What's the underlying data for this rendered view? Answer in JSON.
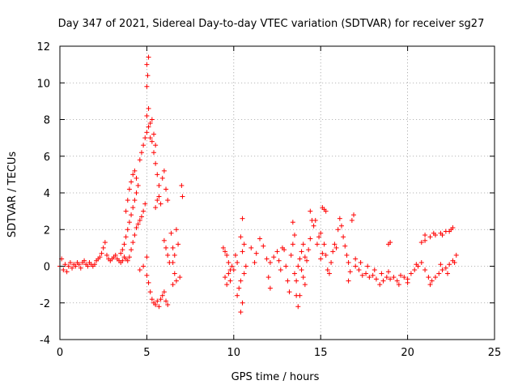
{
  "chart_data": {
    "type": "scatter",
    "title": "Day 347 of 2021, Sidereal Day-to-day VTEC variation (SDTVAR) for receiver sg27",
    "xlabel": "GPS time / hours",
    "ylabel": "SDTVAR / TECUs",
    "xlim": [
      0,
      25
    ],
    "ylim": [
      -4,
      12
    ],
    "xticks": [
      0,
      5,
      10,
      15,
      20,
      25
    ],
    "yticks": [
      -4,
      -2,
      0,
      2,
      4,
      6,
      8,
      10,
      12
    ],
    "grid": true,
    "marker": "+",
    "color": "#ff0000",
    "series": [
      {
        "name": "sg27",
        "points": [
          [
            0.0,
            0.0
          ],
          [
            0.1,
            0.4
          ],
          [
            0.2,
            -0.2
          ],
          [
            0.3,
            0.1
          ],
          [
            0.4,
            -0.3
          ],
          [
            0.5,
            0.0
          ],
          [
            0.6,
            0.2
          ],
          [
            0.7,
            -0.1
          ],
          [
            0.8,
            0.1
          ],
          [
            0.9,
            0.0
          ],
          [
            1.0,
            0.2
          ],
          [
            1.1,
            0.1
          ],
          [
            1.2,
            -0.1
          ],
          [
            1.3,
            0.2
          ],
          [
            1.4,
            0.3
          ],
          [
            1.5,
            0.1
          ],
          [
            1.6,
            0.0
          ],
          [
            1.7,
            0.2
          ],
          [
            1.8,
            0.1
          ],
          [
            1.9,
            0.0
          ],
          [
            2.0,
            0.1
          ],
          [
            2.1,
            0.3
          ],
          [
            2.2,
            0.4
          ],
          [
            2.3,
            0.5
          ],
          [
            2.4,
            0.7
          ],
          [
            2.5,
            1.0
          ],
          [
            2.6,
            1.3
          ],
          [
            2.7,
            0.6
          ],
          [
            2.8,
            0.4
          ],
          [
            2.9,
            0.3
          ],
          [
            3.0,
            0.4
          ],
          [
            3.1,
            0.5
          ],
          [
            3.2,
            0.6
          ],
          [
            3.3,
            0.4
          ],
          [
            3.4,
            0.3
          ],
          [
            3.5,
            0.2
          ],
          [
            3.6,
            0.3
          ],
          [
            3.7,
            0.5
          ],
          [
            3.8,
            0.4
          ],
          [
            3.9,
            0.3
          ],
          [
            3.5,
            0.7
          ],
          [
            3.6,
            0.9
          ],
          [
            3.7,
            1.2
          ],
          [
            3.8,
            1.6
          ],
          [
            3.9,
            2.0
          ],
          [
            4.0,
            2.4
          ],
          [
            4.1,
            2.8
          ],
          [
            4.2,
            3.2
          ],
          [
            4.3,
            3.6
          ],
          [
            4.4,
            4.0
          ],
          [
            3.8,
            3.0
          ],
          [
            3.9,
            3.6
          ],
          [
            4.0,
            4.2
          ],
          [
            4.1,
            4.6
          ],
          [
            4.2,
            5.0
          ],
          [
            4.3,
            5.2
          ],
          [
            4.4,
            4.8
          ],
          [
            4.5,
            4.4
          ],
          [
            4.6,
            5.8
          ],
          [
            4.7,
            6.2
          ],
          [
            4.0,
            0.5
          ],
          [
            4.1,
            0.9
          ],
          [
            4.2,
            1.3
          ],
          [
            4.3,
            1.7
          ],
          [
            4.4,
            2.1
          ],
          [
            4.5,
            2.3
          ],
          [
            4.6,
            2.5
          ],
          [
            4.7,
            2.7
          ],
          [
            4.8,
            3.0
          ],
          [
            4.9,
            3.4
          ],
          [
            4.8,
            6.6
          ],
          [
            4.9,
            7.0
          ],
          [
            5.0,
            7.3
          ],
          [
            5.1,
            7.6
          ],
          [
            5.2,
            7.0
          ],
          [
            5.3,
            6.8
          ],
          [
            5.4,
            7.2
          ],
          [
            5.5,
            6.6
          ],
          [
            5.0,
            8.2
          ],
          [
            5.1,
            8.6
          ],
          [
            5.0,
            9.8
          ],
          [
            5.05,
            10.4
          ],
          [
            5.0,
            11.0
          ],
          [
            5.1,
            11.4
          ],
          [
            5.2,
            7.8
          ],
          [
            5.3,
            8.0
          ],
          [
            5.4,
            6.2
          ],
          [
            5.5,
            5.6
          ],
          [
            5.6,
            5.0
          ],
          [
            5.7,
            4.4
          ],
          [
            5.0,
            0.5
          ],
          [
            4.6,
            -0.2
          ],
          [
            4.8,
            0.0
          ],
          [
            5.0,
            -0.5
          ],
          [
            5.1,
            -0.9
          ],
          [
            5.2,
            -1.4
          ],
          [
            5.3,
            -1.8
          ],
          [
            5.4,
            -2.0
          ],
          [
            5.5,
            -2.1
          ],
          [
            5.6,
            -1.9
          ],
          [
            5.7,
            -2.2
          ],
          [
            5.8,
            -1.8
          ],
          [
            5.9,
            -1.6
          ],
          [
            6.0,
            -1.4
          ],
          [
            6.1,
            -1.9
          ],
          [
            6.2,
            -2.1
          ],
          [
            5.5,
            3.2
          ],
          [
            5.6,
            3.6
          ],
          [
            5.7,
            3.8
          ],
          [
            5.8,
            3.4
          ],
          [
            5.9,
            4.8
          ],
          [
            6.0,
            5.2
          ],
          [
            6.1,
            4.2
          ],
          [
            6.2,
            3.6
          ],
          [
            6.0,
            1.4
          ],
          [
            6.1,
            1.0
          ],
          [
            6.2,
            0.6
          ],
          [
            6.3,
            0.2
          ],
          [
            6.4,
            1.8
          ],
          [
            6.5,
            1.0
          ],
          [
            6.5,
            0.2
          ],
          [
            6.6,
            -0.4
          ],
          [
            6.7,
            -0.8
          ],
          [
            6.5,
            -1.0
          ],
          [
            6.6,
            0.6
          ],
          [
            6.8,
            1.2
          ],
          [
            7.0,
            4.4
          ],
          [
            7.05,
            3.8
          ],
          [
            6.9,
            -0.6
          ],
          [
            6.7,
            2.0
          ],
          [
            9.4,
            1.0
          ],
          [
            9.5,
            0.8
          ],
          [
            9.6,
            0.6
          ],
          [
            9.7,
            0.2
          ],
          [
            9.8,
            -0.2
          ],
          [
            9.9,
            0.0
          ],
          [
            9.5,
            -0.6
          ],
          [
            9.6,
            -1.0
          ],
          [
            9.7,
            -0.4
          ],
          [
            9.8,
            -0.8
          ],
          [
            10.0,
            -0.2
          ],
          [
            10.1,
            0.6
          ],
          [
            10.2,
            0.2
          ],
          [
            10.3,
            -1.2
          ],
          [
            10.4,
            -0.8
          ],
          [
            10.5,
            -2.0
          ],
          [
            10.4,
            -2.5
          ],
          [
            10.5,
            2.6
          ],
          [
            10.6,
            1.2
          ],
          [
            10.4,
            1.6
          ],
          [
            10.5,
            0.8
          ],
          [
            10.6,
            -0.4
          ],
          [
            10.2,
            -1.6
          ],
          [
            10.7,
            0.0
          ],
          [
            11.0,
            1.0
          ],
          [
            11.2,
            0.2
          ],
          [
            11.3,
            0.7
          ],
          [
            11.5,
            1.5
          ],
          [
            11.7,
            1.1
          ],
          [
            11.9,
            0.4
          ],
          [
            12.0,
            -0.6
          ],
          [
            12.1,
            -1.2
          ],
          [
            12.1,
            0.2
          ],
          [
            12.3,
            0.5
          ],
          [
            12.5,
            0.8
          ],
          [
            12.6,
            0.3
          ],
          [
            12.7,
            -0.2
          ],
          [
            12.8,
            1.0
          ],
          [
            12.9,
            0.9
          ],
          [
            13.0,
            0.0
          ],
          [
            13.1,
            -0.8
          ],
          [
            13.2,
            -1.4
          ],
          [
            13.3,
            0.6
          ],
          [
            13.4,
            1.2
          ],
          [
            13.5,
            1.7
          ],
          [
            13.4,
            2.4
          ],
          [
            13.5,
            -0.4
          ],
          [
            13.6,
            -0.8
          ],
          [
            13.7,
            0.0
          ],
          [
            13.8,
            0.4
          ],
          [
            13.9,
            -0.2
          ],
          [
            14.0,
            -0.6
          ],
          [
            14.1,
            -1.0
          ],
          [
            13.6,
            -1.6
          ],
          [
            13.7,
            -2.2
          ],
          [
            13.8,
            -1.6
          ],
          [
            13.9,
            0.8
          ],
          [
            14.0,
            1.2
          ],
          [
            14.1,
            0.5
          ],
          [
            14.2,
            0.3
          ],
          [
            14.3,
            0.9
          ],
          [
            14.4,
            1.5
          ],
          [
            14.5,
            2.5
          ],
          [
            14.4,
            3.0
          ],
          [
            14.6,
            2.2
          ],
          [
            14.7,
            2.5
          ],
          [
            14.8,
            1.2
          ],
          [
            14.9,
            1.6
          ],
          [
            15.0,
            1.8
          ],
          [
            15.1,
            3.2
          ],
          [
            15.2,
            3.1
          ],
          [
            15.3,
            3.0
          ],
          [
            15.0,
            0.4
          ],
          [
            15.1,
            0.7
          ],
          [
            15.2,
            1.2
          ],
          [
            15.3,
            0.6
          ],
          [
            15.4,
            -0.2
          ],
          [
            15.5,
            -0.4
          ],
          [
            15.6,
            0.2
          ],
          [
            15.7,
            0.8
          ],
          [
            15.8,
            1.2
          ],
          [
            15.9,
            1.0
          ],
          [
            16.0,
            2.0
          ],
          [
            16.1,
            2.6
          ],
          [
            16.2,
            2.2
          ],
          [
            16.3,
            1.6
          ],
          [
            16.4,
            1.1
          ],
          [
            16.5,
            0.6
          ],
          [
            16.6,
            0.2
          ],
          [
            16.7,
            -0.3
          ],
          [
            16.8,
            2.5
          ],
          [
            16.9,
            2.8
          ],
          [
            16.6,
            -0.8
          ],
          [
            17.0,
            0.0
          ],
          [
            17.2,
            -0.2
          ],
          [
            17.4,
            -0.5
          ],
          [
            17.6,
            -0.4
          ],
          [
            17.8,
            -0.6
          ],
          [
            18.0,
            -0.5
          ],
          [
            18.2,
            -0.7
          ],
          [
            18.4,
            -1.0
          ],
          [
            18.6,
            -0.8
          ],
          [
            18.8,
            -0.6
          ],
          [
            19.0,
            -0.7
          ],
          [
            19.2,
            -0.6
          ],
          [
            19.4,
            -0.8
          ],
          [
            19.6,
            -0.5
          ],
          [
            19.8,
            -0.6
          ],
          [
            20.0,
            -0.7
          ],
          [
            20.2,
            -0.4
          ],
          [
            20.4,
            -0.2
          ],
          [
            20.6,
            0.0
          ],
          [
            20.8,
            0.2
          ],
          [
            21.0,
            -0.2
          ],
          [
            21.2,
            -0.6
          ],
          [
            21.4,
            -0.8
          ],
          [
            21.6,
            -0.6
          ],
          [
            21.8,
            -0.4
          ],
          [
            22.0,
            -0.2
          ],
          [
            22.2,
            -0.1
          ],
          [
            22.4,
            0.1
          ],
          [
            22.6,
            0.3
          ],
          [
            22.8,
            0.6
          ],
          [
            22.7,
            0.2
          ],
          [
            17.0,
            0.4
          ],
          [
            17.3,
            0.2
          ],
          [
            17.7,
            0.0
          ],
          [
            18.1,
            -0.2
          ],
          [
            18.5,
            -0.4
          ],
          [
            18.9,
            -0.3
          ],
          [
            19.0,
            1.3
          ],
          [
            18.9,
            1.2
          ],
          [
            20.8,
            1.3
          ],
          [
            21.0,
            1.4
          ],
          [
            21.3,
            1.6
          ],
          [
            21.6,
            1.7
          ],
          [
            21.9,
            1.8
          ],
          [
            22.2,
            1.9
          ],
          [
            22.5,
            2.0
          ],
          [
            22.6,
            2.1
          ],
          [
            21.0,
            1.7
          ],
          [
            21.5,
            1.8
          ],
          [
            22.0,
            1.7
          ],
          [
            22.4,
            1.9
          ],
          [
            19.5,
            -1.0
          ],
          [
            20.0,
            -0.9
          ],
          [
            20.5,
            0.1
          ],
          [
            21.3,
            -1.0
          ],
          [
            21.9,
            0.1
          ],
          [
            22.3,
            -0.4
          ]
        ]
      }
    ]
  }
}
